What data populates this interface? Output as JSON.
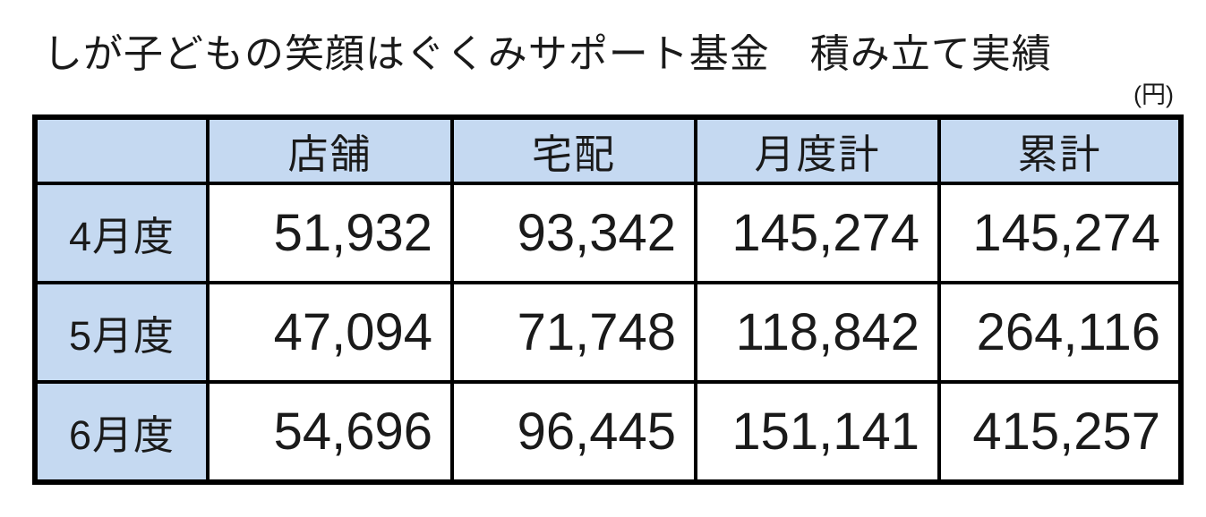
{
  "page": {
    "title": "しが子どもの笑顔はぐくみサポート基金　積み立て実績",
    "unit_label": "(円)"
  },
  "colors": {
    "header_fill": "#c5d9f1",
    "border": "#000000",
    "text": "#1a1a1a"
  },
  "table": {
    "columns": [
      "",
      "店舗",
      "宅配",
      "月度計",
      "累計"
    ],
    "rows": [
      {
        "label": "4月度",
        "values": [
          "51,932",
          "93,342",
          "145,274",
          "145,274"
        ]
      },
      {
        "label": "5月度",
        "values": [
          "47,094",
          "71,748",
          "118,842",
          "264,116"
        ]
      },
      {
        "label": "6月度",
        "values": [
          "54,696",
          "96,445",
          "151,141",
          "415,257"
        ]
      }
    ]
  }
}
